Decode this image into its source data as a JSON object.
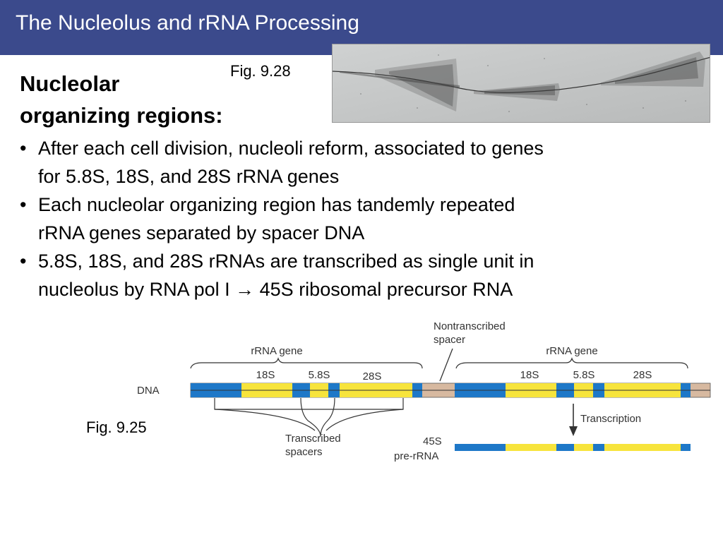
{
  "slide": {
    "title": "The Nucleolus and rRNA Processing",
    "heading_line1": "Nucleolar",
    "heading_line2": "organizing regions:",
    "fig_top": "Fig. 9.28",
    "fig_bottom": "Fig. 9.25",
    "bullets": [
      {
        "line1": "After each cell division, nucleoli reform, associated to genes",
        "line2": "for 5.8S, 18S, and 28S rRNA genes"
      },
      {
        "line1": "Each nucleolar organizing region has tandemly repeated",
        "line2": "rRNA genes separated by spacer DNA"
      },
      {
        "line1": "5.8S, 18S, and 28S rRNAs are transcribed as single unit in",
        "line2": "nucleolus by RNA pol I → 45S ribosomal precursor RNA"
      }
    ],
    "bullet_char": "•"
  },
  "diagram": {
    "colors": {
      "spacer_tan": "#d7b9a0",
      "spacer_blue": "#1e78c8",
      "rrna_yellow": "#f7e43c",
      "text": "#333333"
    },
    "labels": {
      "nontranscribed_line1": "Nontranscribed",
      "nontranscribed_line2": "spacer",
      "rrna_gene_left": "rRNA gene",
      "rrna_gene_right": "rRNA gene",
      "s18_left": "18S",
      "s58_left": "5.8S",
      "s28_left": "28S",
      "s18_right": "18S",
      "s58_right": "5.8S",
      "s28_right": "28S",
      "dna": "DNA",
      "transcription": "Transcription",
      "transcribed_line1": "Transcribed",
      "transcribed_line2": "spacers",
      "pre_line1": "45S",
      "pre_line2": "pre-rRNA"
    }
  }
}
